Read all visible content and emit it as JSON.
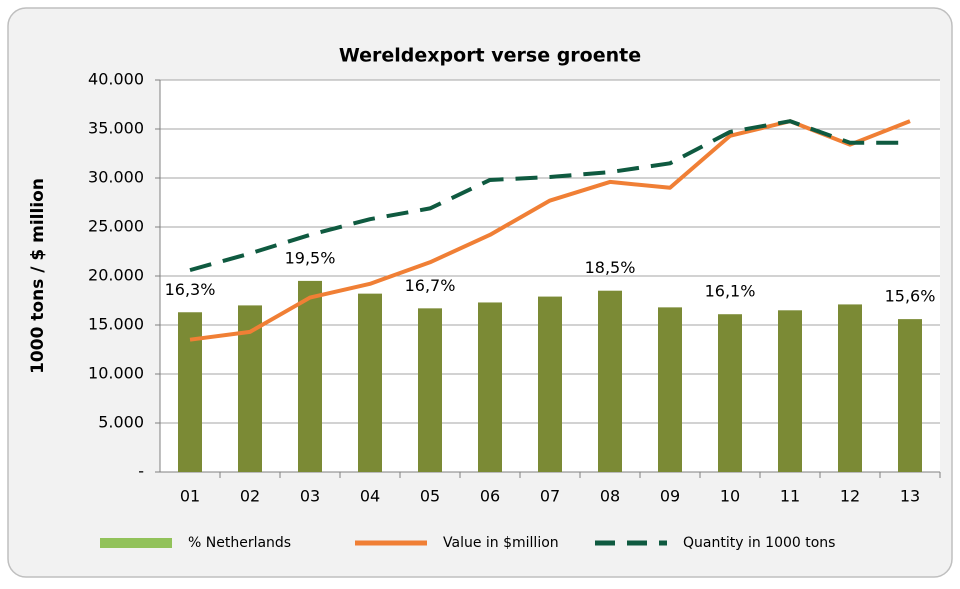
{
  "chart_data": {
    "type": "bar-line",
    "title": "Wereldexport verse groente",
    "ylabel": "1000 tons / $ million",
    "categories": [
      "01",
      "02",
      "03",
      "04",
      "05",
      "06",
      "07",
      "08",
      "09",
      "10",
      "11",
      "12",
      "13"
    ],
    "ylim": [
      0,
      40000
    ],
    "yticks": [
      {
        "value": 0,
        "label": "-"
      },
      {
        "value": 5000,
        "label": "5.000"
      },
      {
        "value": 10000,
        "label": "10.000"
      },
      {
        "value": 15000,
        "label": "15.000"
      },
      {
        "value": 20000,
        "label": "20.000"
      },
      {
        "value": 25000,
        "label": "25.000"
      },
      {
        "value": 30000,
        "label": "30.000"
      },
      {
        "value": 35000,
        "label": "35.000"
      },
      {
        "value": 40000,
        "label": "40.000"
      }
    ],
    "y2lim": [
      0,
      40
    ],
    "grid": true,
    "series": [
      {
        "name": "% Netherlands",
        "type": "bar",
        "axis": "y2",
        "color": "#7b8a35",
        "legend_color": "#92c25a",
        "values": [
          16.3,
          17.0,
          19.5,
          18.2,
          16.7,
          17.3,
          17.9,
          18.5,
          16.8,
          16.1,
          16.5,
          17.1,
          15.6
        ],
        "value_labels": [
          "16,3%",
          null,
          "19,5%",
          null,
          "16,7%",
          null,
          null,
          "18,5%",
          null,
          "16,1%",
          null,
          null,
          "15,6%"
        ]
      },
      {
        "name": "Value in $million",
        "type": "line",
        "color": "#f07f35",
        "values": [
          13500,
          14300,
          17800,
          19200,
          21400,
          24200,
          27700,
          29600,
          29000,
          34300,
          35800,
          33400,
          35800
        ]
      },
      {
        "name": "Quantity in 1000 tons",
        "type": "dashed",
        "color": "#0f5a40",
        "values": [
          20600,
          22300,
          24200,
          25800,
          26900,
          29800,
          30100,
          30600,
          31500,
          34700,
          35800,
          33600,
          33600
        ]
      }
    ]
  }
}
